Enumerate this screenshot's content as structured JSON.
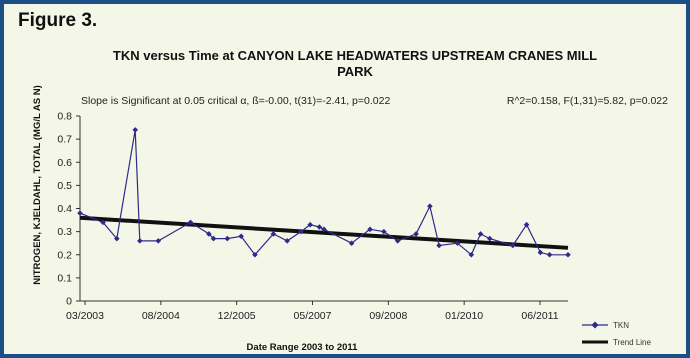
{
  "figure_label": "Figure 3.",
  "colors": {
    "border": "#1b4f86",
    "background": "#f4f7e8",
    "tkn_series": "#2e2a8a",
    "trend_line": "#111111"
  },
  "chart_data": {
    "type": "line",
    "title_line1": "TKN versus Time at CANYON LAKE HEADWATERS UPSTREAM CRANES MILL",
    "title_line2": "PARK",
    "stat_left": "Slope is Significant at 0.05 critical α, ß=-0.00, t(31)=-2.41, p=0.022",
    "stat_right": "R^2=0.158, F(1,31)=5.82, p=0.022",
    "xlabel": "Date Range 2003 to 2011",
    "ylabel": "NITROGEN, KJELDAHL, TOTAL (MG/L AS N)",
    "x_tick_labels": [
      "03/2003",
      "08/2004",
      "12/2005",
      "05/2007",
      "09/2008",
      "01/2010",
      "06/2011"
    ],
    "y_ticks": [
      "0",
      "0.1",
      "0.2",
      "0.3",
      "0.4",
      "0.5",
      "0.6",
      "0.7",
      "0.8"
    ],
    "xlim": [
      "2003-03",
      "2012-01"
    ],
    "ylim": [
      0,
      0.8
    ],
    "legend_position": "bottom-right",
    "series": [
      {
        "name": "TKN",
        "x": [
          "2003-03",
          "2003-08",
          "2003-11",
          "2004-03",
          "2004-04",
          "2004-08",
          "2005-03",
          "2005-07",
          "2005-08",
          "2005-11",
          "2006-02",
          "2006-05",
          "2006-09",
          "2006-12",
          "2007-03",
          "2007-05",
          "2007-07",
          "2007-08",
          "2008-02",
          "2008-06",
          "2008-09",
          "2008-12",
          "2009-04",
          "2009-07",
          "2009-09",
          "2010-01",
          "2010-04",
          "2010-06",
          "2010-08",
          "2011-01",
          "2011-04",
          "2011-07",
          "2011-09",
          "2012-01"
        ],
        "values": [
          0.38,
          0.34,
          0.27,
          0.74,
          0.26,
          0.26,
          0.34,
          0.29,
          0.27,
          0.27,
          0.28,
          0.2,
          0.29,
          0.26,
          0.3,
          0.33,
          0.32,
          0.31,
          0.25,
          0.31,
          0.3,
          0.26,
          0.29,
          0.41,
          0.24,
          0.25,
          0.2,
          0.29,
          0.27,
          0.24,
          0.33,
          0.21,
          0.2,
          0.2
        ]
      },
      {
        "name": "Trend Line",
        "x": [
          "2003-03",
          "2012-01"
        ],
        "values": [
          0.36,
          0.23
        ]
      }
    ]
  }
}
